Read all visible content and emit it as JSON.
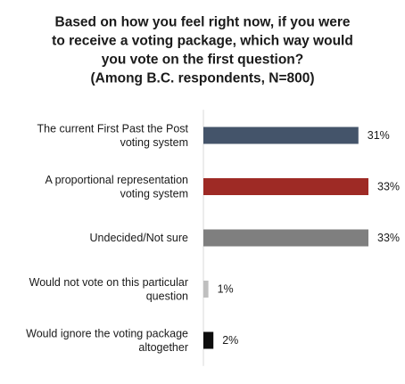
{
  "chart_data": {
    "type": "bar",
    "orientation": "horizontal",
    "title_lines": [
      "Based on how you feel right now, if you were",
      "to receive a voting package, which way would",
      "you vote on the first question?",
      "(Among B.C. respondents, N=800)"
    ],
    "categories": [
      [
        "The current First Past the Post",
        "voting system"
      ],
      [
        "A proportional representation",
        "voting system"
      ],
      [
        "Undecided/Not sure"
      ],
      [
        "Would not vote on this particular",
        "question"
      ],
      [
        "Would ignore the voting package",
        "altogether"
      ]
    ],
    "values": [
      31,
      33,
      33,
      1,
      2
    ],
    "value_labels": [
      "31%",
      "33%",
      "33%",
      "1%",
      "2%"
    ],
    "colors": [
      "#44546a",
      "#9e2a25",
      "#7f7f7f",
      "#bfbfbf",
      "#0d0d0d"
    ],
    "xlim": [
      0,
      33
    ],
    "grid": false,
    "legend": "none"
  }
}
